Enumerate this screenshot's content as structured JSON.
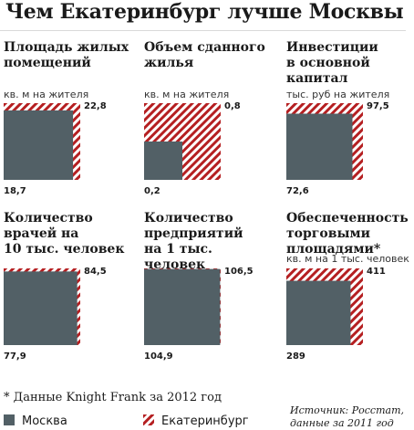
{
  "title": "Чем Екатеринбург лучше Москвы",
  "colors": {
    "moscow": "#526066",
    "yekaterinburg": "#b51f21",
    "stripe_bg": "#ffffff"
  },
  "chart_data": [
    {
      "type": "area-square",
      "title": "Площадь жилых\nпомещений",
      "unit": "кв. м на жителя",
      "series": [
        {
          "name": "Москва",
          "value": 18.7,
          "label": "18,7"
        },
        {
          "name": "Екатеринбург",
          "value": 22.8,
          "label": "22,8"
        }
      ]
    },
    {
      "type": "area-square",
      "title": "Объем сданного\nжилья",
      "unit": "кв. м на жителя",
      "series": [
        {
          "name": "Москва",
          "value": 0.2,
          "label": "0,2"
        },
        {
          "name": "Екатеринбург",
          "value": 0.8,
          "label": "0,8"
        }
      ]
    },
    {
      "type": "area-square",
      "title": "Инвестиции\nв основной\nкапитал",
      "unit": "тыс. руб на жителя",
      "series": [
        {
          "name": "Москва",
          "value": 72.6,
          "label": "72,6"
        },
        {
          "name": "Екатеринбург",
          "value": 97.5,
          "label": "97,5"
        }
      ]
    },
    {
      "type": "area-square",
      "title": "Количество\nврачей на\n10 тыс. человек",
      "unit": "",
      "series": [
        {
          "name": "Москва",
          "value": 77.9,
          "label": "77,9"
        },
        {
          "name": "Екатеринбург",
          "value": 84.5,
          "label": "84,5"
        }
      ]
    },
    {
      "type": "area-square",
      "title": "Количество\nпредприятий\nна 1 тыс. человек",
      "unit": "",
      "series": [
        {
          "name": "Москва",
          "value": 104.9,
          "label": "104,9"
        },
        {
          "name": "Екатеринбург",
          "value": 106.5,
          "label": "106,5"
        }
      ]
    },
    {
      "type": "area-square",
      "title": "Обеспеченность\nторговыми\nплощадями*",
      "unit": "кв. м на 1 тыс. человек",
      "series": [
        {
          "name": "Москва",
          "value": 289,
          "label": "289"
        },
        {
          "name": "Екатеринбург",
          "value": 411,
          "label": "411"
        }
      ]
    }
  ],
  "footnote": "* Данные Knight Frank за 2012 год",
  "source": "Источник: Росстат,\nданные за 2011 год",
  "legend": {
    "moscow": "Москва",
    "yekaterinburg": "Екатеринбург"
  }
}
